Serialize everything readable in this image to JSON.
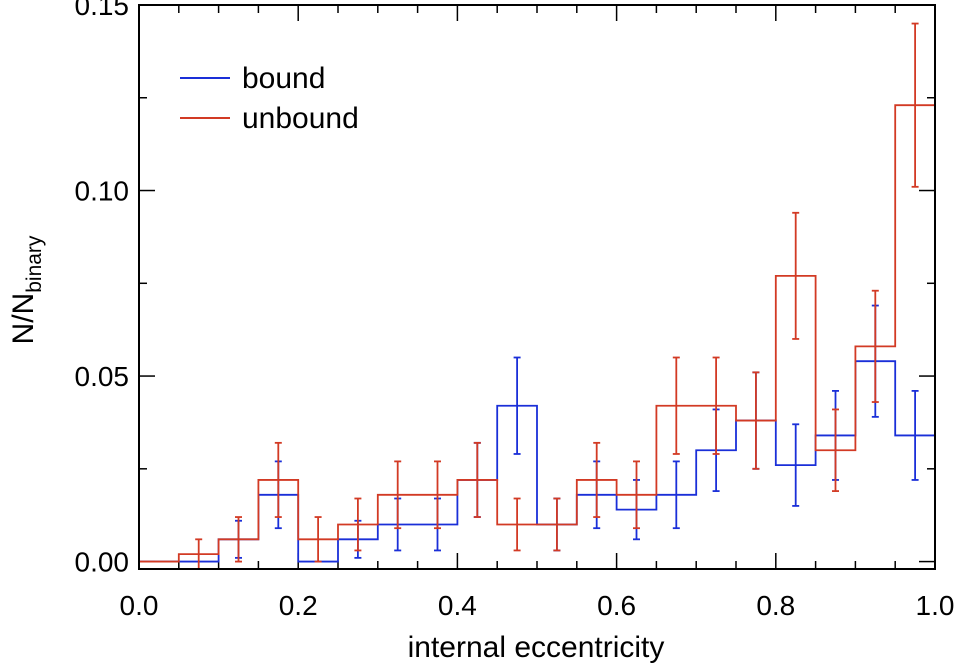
{
  "chart_data": {
    "type": "step-histogram",
    "xlabel": "internal eccentricity",
    "ylabel_main": "N/N",
    "ylabel_sub": "binary",
    "xlim": [
      0.0,
      1.0
    ],
    "ylim": [
      -0.002,
      0.15
    ],
    "x_ticks": [
      0.0,
      0.2,
      0.4,
      0.6,
      0.8,
      1.0
    ],
    "x_tick_labels": [
      "0.0",
      "0.2",
      "0.4",
      "0.6",
      "0.8",
      "1.0"
    ],
    "x_minor_step": 0.05,
    "y_ticks": [
      0.0,
      0.05,
      0.1,
      0.15
    ],
    "y_tick_labels": [
      "0.00",
      "0.05",
      "0.10",
      "0.15"
    ],
    "y_minor_step": 0.025,
    "bin_edges": [
      0.0,
      0.05,
      0.1,
      0.15,
      0.2,
      0.25,
      0.3,
      0.35,
      0.4,
      0.45,
      0.5,
      0.55,
      0.6,
      0.65,
      0.7,
      0.75,
      0.8,
      0.85,
      0.9,
      0.95,
      1.0
    ],
    "legend_position": "top-left",
    "series": [
      {
        "name": "bound",
        "color": "#1a2fd8",
        "values": [
          0.0,
          0.0,
          0.006,
          0.018,
          0.0,
          0.006,
          0.01,
          0.01,
          0.022,
          0.042,
          0.01,
          0.018,
          0.014,
          0.018,
          0.03,
          0.038,
          0.026,
          0.034,
          0.054,
          0.034
        ],
        "errors": [
          0.0,
          0.0,
          0.005,
          0.009,
          0.0,
          0.005,
          0.007,
          0.007,
          0.01,
          0.013,
          0.007,
          0.009,
          0.008,
          0.009,
          0.011,
          0.013,
          0.011,
          0.012,
          0.015,
          0.012
        ]
      },
      {
        "name": "unbound",
        "color": "#d23a24",
        "values": [
          0.0,
          0.002,
          0.006,
          0.022,
          0.006,
          0.01,
          0.018,
          0.018,
          0.022,
          0.01,
          0.01,
          0.022,
          0.018,
          0.042,
          0.042,
          0.038,
          0.077,
          0.03,
          0.058,
          0.123
        ],
        "errors": [
          0.0,
          0.004,
          0.006,
          0.01,
          0.006,
          0.007,
          0.009,
          0.009,
          0.01,
          0.007,
          0.007,
          0.01,
          0.009,
          0.013,
          0.013,
          0.013,
          0.017,
          0.011,
          0.015,
          0.022
        ]
      }
    ]
  }
}
